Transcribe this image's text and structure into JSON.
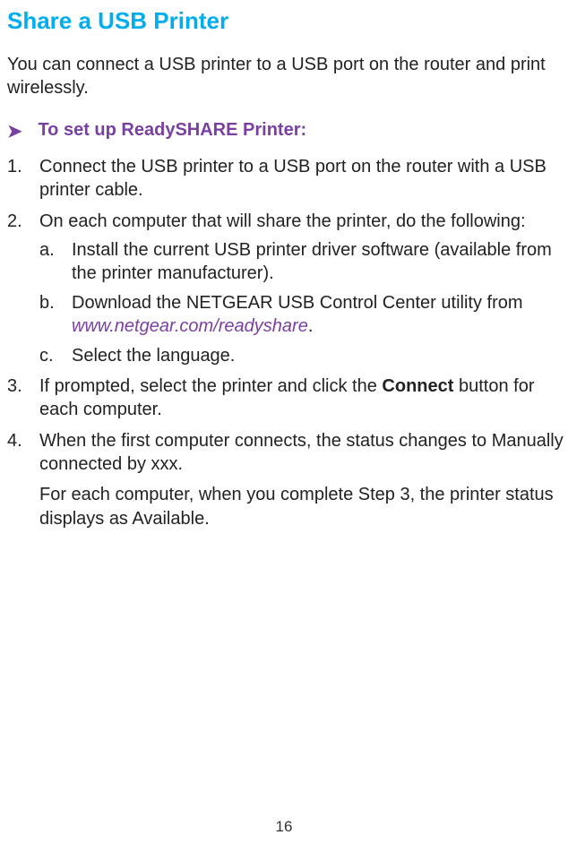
{
  "title": "Share a USB Printer",
  "intro": "You can connect a USB printer to a USB port on the router and print wirelessly.",
  "proc": {
    "arrow": "➤",
    "heading": "To set up ReadySHARE Printer:"
  },
  "steps": [
    {
      "text": "Connect the USB printer to a USB port on the router with a USB printer cable."
    },
    {
      "text": " On each computer that will share the printer, do the following:",
      "sub": [
        {
          "text": "Install the current USB printer driver software (available from the printer manufacturer)."
        },
        {
          "pre": "Download the NETGEAR USB Control Center utility from ",
          "link": "www.netgear.com/readyshare",
          "post": "."
        },
        {
          "text": "Select the language."
        }
      ]
    },
    {
      "pre": "If prompted, select the printer and click the ",
      "bold": "Connect",
      "post": " button for each computer."
    },
    {
      "text": "When the first computer connects, the status changes to Manually connected by xxx."
    }
  ],
  "trailing": "For each computer, when you complete Step 3, the printer status displays as Available.",
  "pageNumber": "16"
}
